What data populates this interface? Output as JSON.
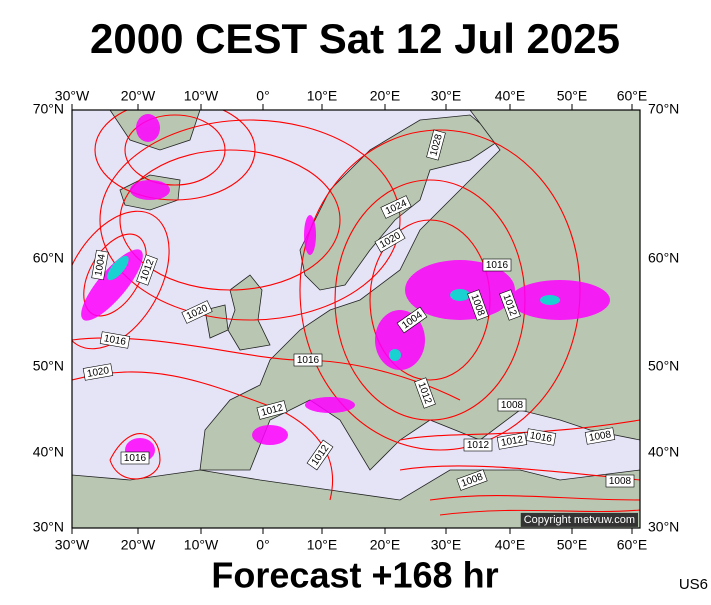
{
  "header": {
    "title": "2000 CEST Sat 12 Jul 2025"
  },
  "map": {
    "lon_labels": [
      "30°W",
      "20°W",
      "10°W",
      "0°",
      "10°E",
      "20°E",
      "30°E",
      "40°E",
      "50°E",
      "60°E"
    ],
    "lat_labels": [
      "70°N",
      "60°N",
      "50°N",
      "40°N",
      "30°N"
    ],
    "isobar_labels": [
      "1004",
      "1012",
      "1016",
      "1020",
      "1020",
      "1016",
      "1012",
      "1012",
      "1016",
      "1004",
      "1008",
      "1012",
      "1016",
      "1020",
      "1024",
      "1028",
      "1012",
      "1008",
      "1016",
      "1012",
      "1012",
      "1008",
      "1008",
      "1008"
    ],
    "copyright": "Copyright metvuw.com"
  },
  "footer": {
    "forecast": "Forecast +168 hr",
    "code": "US6"
  }
}
